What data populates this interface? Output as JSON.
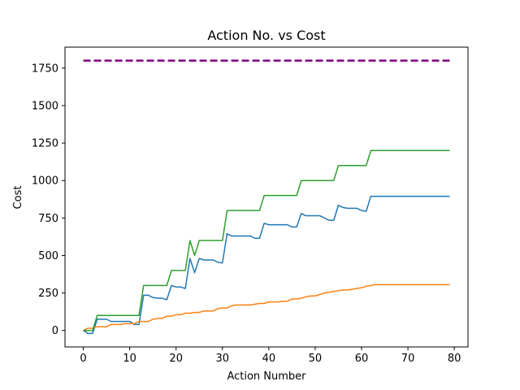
{
  "chart_data": {
    "type": "line",
    "title": "Action No. vs Cost",
    "xlabel": "Action Number",
    "ylabel": "Cost",
    "xlim": [
      -3.95,
      82.95
    ],
    "ylim": [
      -110,
      1890
    ],
    "xticks": [
      0,
      10,
      20,
      30,
      40,
      50,
      60,
      70,
      80
    ],
    "yticks": [
      0,
      250,
      500,
      750,
      1000,
      1250,
      1500,
      1750
    ],
    "grid": false,
    "series": [
      {
        "color": "#1f77b4",
        "dash": "solid",
        "x": [
          0,
          1,
          2,
          3,
          4,
          5,
          6,
          7,
          8,
          9,
          10,
          11,
          12,
          13,
          14,
          15,
          16,
          17,
          18,
          19,
          20,
          21,
          22,
          23,
          24,
          25,
          26,
          27,
          28,
          29,
          30,
          31,
          32,
          33,
          34,
          35,
          36,
          37,
          38,
          39,
          40,
          41,
          42,
          43,
          44,
          45,
          46,
          47,
          48,
          49,
          50,
          51,
          52,
          53,
          54,
          55,
          56,
          57,
          58,
          59,
          60,
          61,
          62,
          63,
          64,
          65,
          66,
          67,
          68,
          69,
          70,
          71,
          72,
          73,
          74,
          75,
          76,
          77,
          78,
          79
        ],
        "y": [
          0,
          -20,
          -20,
          75,
          75,
          75,
          60,
          60,
          60,
          60,
          60,
          40,
          40,
          235,
          235,
          220,
          215,
          215,
          205,
          300,
          290,
          290,
          280,
          480,
          385,
          480,
          470,
          470,
          470,
          455,
          450,
          645,
          630,
          630,
          630,
          630,
          630,
          615,
          615,
          715,
          705,
          705,
          705,
          705,
          705,
          690,
          690,
          780,
          765,
          765,
          765,
          765,
          750,
          735,
          735,
          835,
          820,
          815,
          815,
          815,
          800,
          795,
          895,
          895,
          895,
          895,
          895,
          895,
          895,
          895,
          895,
          895,
          895,
          895,
          895,
          895,
          895,
          895,
          895,
          895
        ]
      },
      {
        "color": "#ff7f0e",
        "dash": "solid",
        "x": [
          0,
          1,
          2,
          3,
          4,
          5,
          6,
          7,
          8,
          9,
          10,
          11,
          12,
          13,
          14,
          15,
          16,
          17,
          18,
          19,
          20,
          21,
          22,
          23,
          24,
          25,
          26,
          27,
          28,
          29,
          30,
          31,
          32,
          33,
          34,
          35,
          36,
          37,
          38,
          39,
          40,
          41,
          42,
          43,
          44,
          45,
          46,
          47,
          48,
          49,
          50,
          51,
          52,
          53,
          54,
          55,
          56,
          57,
          58,
          59,
          60,
          61,
          62,
          63,
          64,
          65,
          66,
          67,
          68,
          69,
          70,
          71,
          72,
          73,
          74,
          75,
          76,
          77,
          78,
          79
        ],
        "y": [
          0,
          15,
          15,
          25,
          25,
          25,
          40,
          40,
          40,
          45,
          45,
          45,
          60,
          60,
          60,
          75,
          80,
          80,
          95,
          95,
          105,
          105,
          115,
          115,
          120,
          120,
          130,
          130,
          130,
          145,
          150,
          150,
          165,
          170,
          170,
          170,
          170,
          175,
          180,
          180,
          190,
          190,
          190,
          195,
          195,
          210,
          210,
          215,
          225,
          230,
          230,
          240,
          250,
          255,
          260,
          265,
          270,
          270,
          275,
          280,
          285,
          295,
          300,
          305,
          305,
          305,
          305,
          305,
          305,
          305,
          305,
          305,
          305,
          305,
          305,
          305,
          305,
          305,
          305,
          305
        ]
      },
      {
        "color": "#2ca02c",
        "dash": "solid",
        "x": [
          0,
          2,
          3,
          12,
          13,
          18,
          19,
          22,
          23,
          24,
          25,
          30,
          31,
          38,
          39,
          46,
          47,
          54,
          55,
          61,
          62,
          79
        ],
        "y": [
          0,
          0,
          100,
          100,
          300,
          300,
          400,
          400,
          600,
          500,
          600,
          600,
          800,
          800,
          900,
          900,
          1000,
          1000,
          1100,
          1100,
          1200,
          1200
        ]
      },
      {
        "color": "#800080",
        "dash": "dashed",
        "x": [
          0,
          79
        ],
        "y": [
          1800,
          1800
        ]
      }
    ]
  }
}
